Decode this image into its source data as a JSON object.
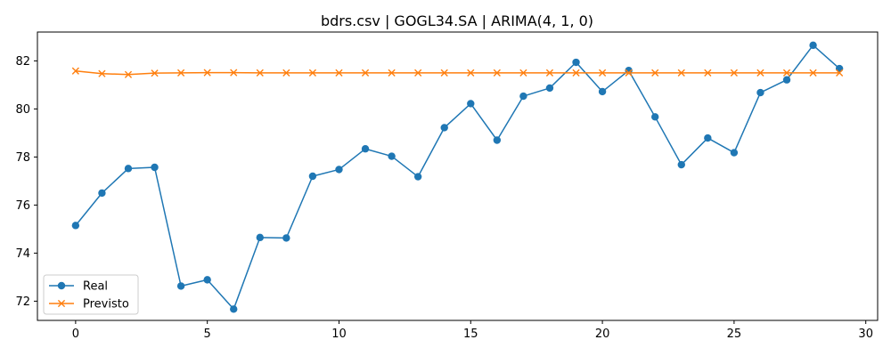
{
  "chart_data": {
    "type": "line",
    "title": "bdrs.csv | GOGL34.SA | ARIMA(4, 1, 0)",
    "xlabel": "",
    "ylabel": "",
    "xlim": [
      -1.45,
      30.45
    ],
    "ylim": [
      71.2,
      83.2
    ],
    "x_ticks": [
      0,
      5,
      10,
      15,
      20,
      25,
      30
    ],
    "y_ticks": [
      72,
      74,
      76,
      78,
      80,
      82
    ],
    "grid": false,
    "legend_position": "lower-left",
    "x": [
      0,
      1,
      2,
      3,
      4,
      5,
      6,
      7,
      8,
      9,
      10,
      11,
      12,
      13,
      14,
      15,
      16,
      17,
      18,
      19,
      20,
      21,
      22,
      23,
      24,
      25,
      26,
      27,
      28,
      29
    ],
    "series": [
      {
        "name": "Real",
        "color": "#1f77b4",
        "marker": "circle",
        "values": [
          75.15,
          76.5,
          77.52,
          77.57,
          72.63,
          72.89,
          71.67,
          74.65,
          74.63,
          77.2,
          77.48,
          78.34,
          78.03,
          77.18,
          79.22,
          80.22,
          78.7,
          80.53,
          80.87,
          81.94,
          80.72,
          81.6,
          79.67,
          77.68,
          78.79,
          78.18,
          80.68,
          81.21,
          82.65,
          81.68
        ]
      },
      {
        "name": "Previsto",
        "color": "#ff7f0e",
        "marker": "x",
        "values": [
          81.58,
          81.47,
          81.43,
          81.49,
          81.5,
          81.51,
          81.51,
          81.5,
          81.5,
          81.5,
          81.5,
          81.5,
          81.5,
          81.5,
          81.5,
          81.5,
          81.5,
          81.5,
          81.5,
          81.5,
          81.5,
          81.5,
          81.5,
          81.5,
          81.5,
          81.5,
          81.5,
          81.5,
          81.5,
          81.5
        ]
      }
    ]
  }
}
